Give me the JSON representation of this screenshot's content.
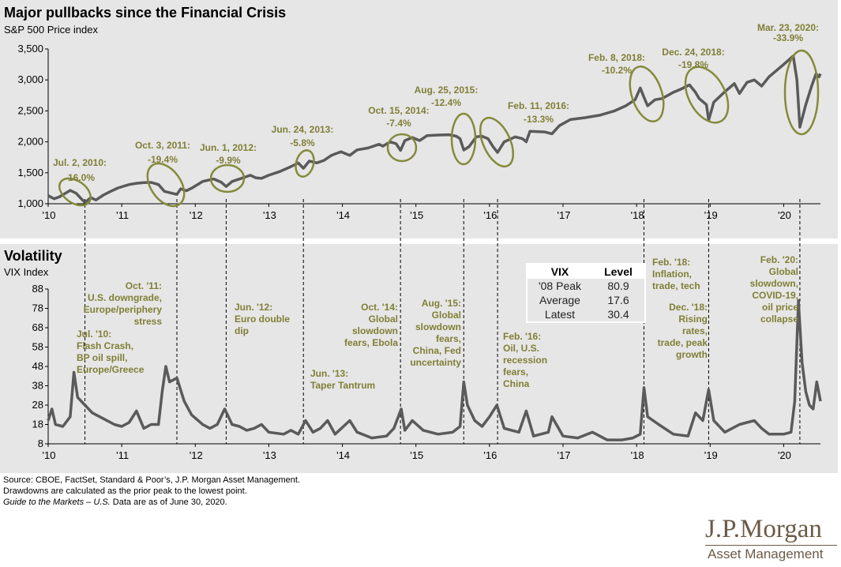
{
  "title": "Major pullbacks since the Financial Crisis",
  "subtitle": "S&P 500 Price index",
  "vol_title": "Volatility",
  "vol_subtitle": "VIX Index",
  "colors": {
    "olive": "#848a3a",
    "annot": "#7f7f36",
    "line": "#5a5a5a",
    "panel": "#e6e6e6",
    "brand": "#6b5a47"
  },
  "footer": {
    "line1": "Source: CBOE, FactSet, Standard & Poor’s, J.P. Morgan Asset Management.",
    "line2": "Drawdowns are calculated as the prior peak to the lowest point.",
    "line3_italic": "Guide to the Markets – U.S.",
    "line3_rest": " Data are as of June 30, 2020."
  },
  "logo": {
    "line1": "J.P.Morgan",
    "line2": "Asset Management"
  },
  "vix_table": {
    "headers": [
      "VIX",
      "Level"
    ],
    "rows": [
      {
        "label": "'08 Peak",
        "value": "80.9"
      },
      {
        "label": "Average",
        "value": "17.6"
      },
      {
        "label": "Latest",
        "value": "30.4"
      }
    ]
  },
  "chart_data": [
    {
      "type": "line",
      "name": "sp500",
      "title": "Major pullbacks since the Financial Crisis",
      "ylabel": "S&P 500 Price index",
      "ylim": [
        1000,
        3500
      ],
      "xlim": [
        2010,
        2020.5
      ],
      "y_ticks": [
        "1,000",
        "1,500",
        "2,000",
        "2,500",
        "3,000",
        "3,500"
      ],
      "y_tick_values": [
        1000,
        1500,
        2000,
        2500,
        3000,
        3500
      ],
      "x_ticks": [
        "'10",
        "'11",
        "'12",
        "'13",
        "'14",
        "'15",
        "'16",
        "'17",
        "'18",
        "'19",
        "'20"
      ],
      "x_tick_values": [
        2010,
        2011,
        2012,
        2013,
        2014,
        2015,
        2016,
        2017,
        2018,
        2019,
        2020
      ],
      "series": [
        {
          "name": "S&P 500",
          "points": [
            [
              2010.0,
              1130
            ],
            [
              2010.08,
              1080
            ],
            [
              2010.15,
              1110
            ],
            [
              2010.3,
              1215
            ],
            [
              2010.38,
              1170
            ],
            [
              2010.45,
              1080
            ],
            [
              2010.5,
              1022
            ],
            [
              2010.58,
              1100
            ],
            [
              2010.65,
              1060
            ],
            [
              2010.75,
              1140
            ],
            [
              2010.85,
              1200
            ],
            [
              2010.95,
              1255
            ],
            [
              2011.1,
              1310
            ],
            [
              2011.2,
              1330
            ],
            [
              2011.3,
              1340
            ],
            [
              2011.4,
              1345
            ],
            [
              2011.5,
              1310
            ],
            [
              2011.58,
              1200
            ],
            [
              2011.65,
              1180
            ],
            [
              2011.75,
              1150
            ],
            [
              2011.8,
              1240
            ],
            [
              2011.88,
              1210
            ],
            [
              2011.96,
              1258
            ],
            [
              2012.1,
              1360
            ],
            [
              2012.25,
              1400
            ],
            [
              2012.35,
              1350
            ],
            [
              2012.42,
              1278
            ],
            [
              2012.5,
              1360
            ],
            [
              2012.65,
              1420
            ],
            [
              2012.75,
              1460
            ],
            [
              2012.82,
              1420
            ],
            [
              2012.9,
              1410
            ],
            [
              2013.0,
              1460
            ],
            [
              2013.15,
              1520
            ],
            [
              2013.3,
              1600
            ],
            [
              2013.4,
              1660
            ],
            [
              2013.47,
              1573
            ],
            [
              2013.55,
              1690
            ],
            [
              2013.65,
              1660
            ],
            [
              2013.75,
              1700
            ],
            [
              2013.85,
              1780
            ],
            [
              2013.98,
              1840
            ],
            [
              2014.1,
              1780
            ],
            [
              2014.2,
              1870
            ],
            [
              2014.35,
              1900
            ],
            [
              2014.5,
              1960
            ],
            [
              2014.55,
              1930
            ],
            [
              2014.65,
              2000
            ],
            [
              2014.73,
              1970
            ],
            [
              2014.79,
              1862
            ],
            [
              2014.85,
              2020
            ],
            [
              2014.95,
              2070
            ],
            [
              2015.05,
              2020
            ],
            [
              2015.15,
              2100
            ],
            [
              2015.3,
              2110
            ],
            [
              2015.45,
              2115
            ],
            [
              2015.55,
              2090
            ],
            [
              2015.6,
              2050
            ],
            [
              2015.65,
              1867
            ],
            [
              2015.72,
              1920
            ],
            [
              2015.82,
              2080
            ],
            [
              2015.9,
              2090
            ],
            [
              2015.98,
              2050
            ],
            [
              2016.05,
              1920
            ],
            [
              2016.11,
              1829
            ],
            [
              2016.2,
              2000
            ],
            [
              2016.35,
              2080
            ],
            [
              2016.45,
              2050
            ],
            [
              2016.5,
              2000
            ],
            [
              2016.55,
              2170
            ],
            [
              2016.75,
              2160
            ],
            [
              2016.85,
              2130
            ],
            [
              2016.95,
              2260
            ],
            [
              2017.1,
              2360
            ],
            [
              2017.3,
              2390
            ],
            [
              2017.5,
              2430
            ],
            [
              2017.7,
              2500
            ],
            [
              2017.85,
              2580
            ],
            [
              2017.98,
              2680
            ],
            [
              2018.05,
              2870
            ],
            [
              2018.1,
              2720
            ],
            [
              2018.15,
              2581
            ],
            [
              2018.25,
              2680
            ],
            [
              2018.35,
              2700
            ],
            [
              2018.5,
              2800
            ],
            [
              2018.6,
              2850
            ],
            [
              2018.72,
              2920
            ],
            [
              2018.8,
              2800
            ],
            [
              2018.85,
              2700
            ],
            [
              2018.95,
              2600
            ],
            [
              2018.98,
              2351
            ],
            [
              2019.05,
              2640
            ],
            [
              2019.2,
              2810
            ],
            [
              2019.33,
              2940
            ],
            [
              2019.4,
              2780
            ],
            [
              2019.5,
              2960
            ],
            [
              2019.6,
              3000
            ],
            [
              2019.7,
              2900
            ],
            [
              2019.8,
              3050
            ],
            [
              2019.9,
              3150
            ],
            [
              2020.0,
              3250
            ],
            [
              2020.13,
              3386
            ],
            [
              2020.18,
              3000
            ],
            [
              2020.22,
              2237
            ],
            [
              2020.3,
              2600
            ],
            [
              2020.38,
              2900
            ],
            [
              2020.44,
              3100
            ],
            [
              2020.48,
              3050
            ],
            [
              2020.5,
              3100
            ]
          ]
        }
      ],
      "annotations": [
        {
          "date": "Jul. 2, 2010:",
          "drawdown": "-16.0%"
        },
        {
          "date": "Oct. 3, 2011:",
          "drawdown": "-19.4%"
        },
        {
          "date": "Jun. 1, 2012:",
          "drawdown": "-9.9%"
        },
        {
          "date": "Jun. 24, 2013:",
          "drawdown": "-5.8%"
        },
        {
          "date": "Oct. 15, 2014:",
          "drawdown": "-7.4%"
        },
        {
          "date": "Aug. 25, 2015:",
          "drawdown": "-12.4%"
        },
        {
          "date": "Feb. 11, 2016:",
          "drawdown": "-13.3%"
        },
        {
          "date": "Feb. 8, 2018:",
          "drawdown": "-10.2%"
        },
        {
          "date": "Dec. 24, 2018:",
          "drawdown": "-19.8%"
        },
        {
          "date": "Mar. 23, 2020:",
          "drawdown": "-33.9%"
        }
      ]
    },
    {
      "type": "line",
      "name": "vix",
      "title": "Volatility",
      "ylabel": "VIX Index",
      "ylim": [
        8,
        88
      ],
      "xlim": [
        2010,
        2020.5
      ],
      "y_ticks": [
        "8",
        "18",
        "28",
        "38",
        "48",
        "58",
        "68",
        "78",
        "88"
      ],
      "y_tick_values": [
        8,
        18,
        28,
        38,
        48,
        58,
        68,
        78,
        88
      ],
      "x_ticks": [
        "'10",
        "'11",
        "'12",
        "'13",
        "'14",
        "'15",
        "'16",
        "'17",
        "'18",
        "'19",
        "'20"
      ],
      "x_tick_values": [
        2010,
        2011,
        2012,
        2013,
        2014,
        2015,
        2016,
        2017,
        2018,
        2019,
        2020
      ],
      "series": [
        {
          "name": "VIX",
          "points": [
            [
              2010.0,
              20
            ],
            [
              2010.05,
              26
            ],
            [
              2010.1,
              18
            ],
            [
              2010.2,
              17
            ],
            [
              2010.3,
              22
            ],
            [
              2010.35,
              45
            ],
            [
              2010.4,
              32
            ],
            [
              2010.5,
              28
            ],
            [
              2010.6,
              24
            ],
            [
              2010.7,
              22
            ],
            [
              2010.8,
              20
            ],
            [
              2010.9,
              18
            ],
            [
              2011.0,
              17
            ],
            [
              2011.1,
              19
            ],
            [
              2011.2,
              25
            ],
            [
              2011.3,
              16
            ],
            [
              2011.4,
              18
            ],
            [
              2011.5,
              18
            ],
            [
              2011.55,
              35
            ],
            [
              2011.6,
              48
            ],
            [
              2011.65,
              40
            ],
            [
              2011.75,
              42
            ],
            [
              2011.85,
              30
            ],
            [
              2011.95,
              23
            ],
            [
              2012.1,
              18
            ],
            [
              2012.2,
              16
            ],
            [
              2012.3,
              18
            ],
            [
              2012.4,
              26
            ],
            [
              2012.5,
              18
            ],
            [
              2012.6,
              17
            ],
            [
              2012.7,
              15
            ],
            [
              2012.8,
              16
            ],
            [
              2012.9,
              18
            ],
            [
              2013.0,
              14
            ],
            [
              2013.2,
              13
            ],
            [
              2013.3,
              15
            ],
            [
              2013.4,
              13
            ],
            [
              2013.5,
              20
            ],
            [
              2013.6,
              14
            ],
            [
              2013.7,
              16
            ],
            [
              2013.8,
              20
            ],
            [
              2013.9,
              13
            ],
            [
              2014.1,
              20
            ],
            [
              2014.2,
              14
            ],
            [
              2014.4,
              11
            ],
            [
              2014.6,
              12
            ],
            [
              2014.7,
              16
            ],
            [
              2014.8,
              26
            ],
            [
              2014.85,
              15
            ],
            [
              2014.95,
              20
            ],
            [
              2015.1,
              15
            ],
            [
              2015.3,
              13
            ],
            [
              2015.5,
              14
            ],
            [
              2015.6,
              17
            ],
            [
              2015.65,
              40
            ],
            [
              2015.7,
              28
            ],
            [
              2015.8,
              20
            ],
            [
              2015.9,
              17
            ],
            [
              2016.0,
              22
            ],
            [
              2016.1,
              28
            ],
            [
              2016.2,
              16
            ],
            [
              2016.4,
              14
            ],
            [
              2016.5,
              25
            ],
            [
              2016.6,
              12
            ],
            [
              2016.8,
              14
            ],
            [
              2016.85,
              22
            ],
            [
              2017.0,
              12
            ],
            [
              2017.2,
              11
            ],
            [
              2017.4,
              14
            ],
            [
              2017.6,
              10
            ],
            [
              2017.8,
              10
            ],
            [
              2017.95,
              11
            ],
            [
              2018.05,
              13
            ],
            [
              2018.1,
              37
            ],
            [
              2018.15,
              22
            ],
            [
              2018.3,
              18
            ],
            [
              2018.5,
              13
            ],
            [
              2018.7,
              12
            ],
            [
              2018.8,
              24
            ],
            [
              2018.9,
              20
            ],
            [
              2018.98,
              36
            ],
            [
              2019.05,
              20
            ],
            [
              2019.2,
              14
            ],
            [
              2019.4,
              18
            ],
            [
              2019.6,
              20
            ],
            [
              2019.7,
              16
            ],
            [
              2019.8,
              13
            ],
            [
              2019.9,
              13
            ],
            [
              2020.0,
              13
            ],
            [
              2020.1,
              14
            ],
            [
              2020.15,
              30
            ],
            [
              2020.2,
              82
            ],
            [
              2020.25,
              50
            ],
            [
              2020.3,
              35
            ],
            [
              2020.35,
              28
            ],
            [
              2020.4,
              26
            ],
            [
              2020.45,
              40
            ],
            [
              2020.5,
              30
            ]
          ]
        }
      ],
      "annotations": [
        {
          "lines": [
            "Jul. '10:",
            "Flash Crash,",
            "BP oil spill,",
            "Europe/Greece"
          ]
        },
        {
          "lines": [
            "Oct. '11:",
            "U.S. downgrade,",
            "Europe/periphery",
            "stress"
          ]
        },
        {
          "lines": [
            "Jun. '12:",
            "Euro double",
            "dip"
          ]
        },
        {
          "lines": [
            "Jun. '13:",
            "Taper Tantrum"
          ]
        },
        {
          "lines": [
            "Oct. '14:",
            "Global",
            "slowdown",
            "fears, Ebola"
          ]
        },
        {
          "lines": [
            "Aug. '15:",
            "Global",
            "slowdown",
            "fears,",
            "China, Fed",
            "uncertainty"
          ]
        },
        {
          "lines": [
            "Feb. '16:",
            "Oil, U.S.",
            "recession",
            "fears,",
            "China"
          ]
        },
        {
          "lines": [
            "Feb. '18:",
            "Inflation,",
            "trade, tech"
          ]
        },
        {
          "lines": [
            "Dec. '18:",
            "Rising",
            "rates,",
            "trade, peak",
            "growth"
          ]
        },
        {
          "lines": [
            "Feb. '20:",
            "Global",
            "slowdown,",
            "COVID-19,",
            "oil price",
            "collapse"
          ]
        }
      ]
    }
  ]
}
